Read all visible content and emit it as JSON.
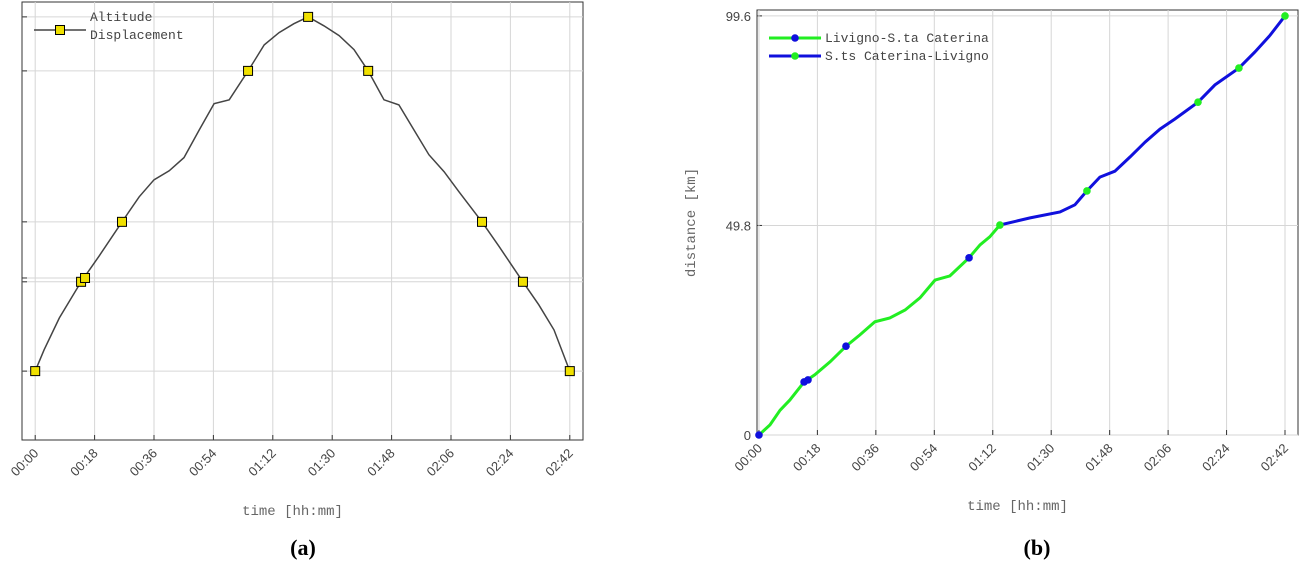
{
  "chart_data": [
    {
      "type": "line",
      "caption": "(a)",
      "x_label": "time [hh:mm]",
      "grid": true,
      "legend": "upper left",
      "xlim": [
        -4,
        166
      ],
      "ylim": [
        0,
        103
      ],
      "xticks": [
        {
          "value": 0,
          "label": "00:00"
        },
        {
          "value": 18,
          "label": "00:18"
        },
        {
          "value": 36,
          "label": "00:36"
        },
        {
          "value": 54,
          "label": "00:54"
        },
        {
          "value": 72,
          "label": "01:12"
        },
        {
          "value": 90,
          "label": "01:30"
        },
        {
          "value": 108,
          "label": "01:48"
        },
        {
          "value": 126,
          "label": "02:06"
        },
        {
          "value": 144,
          "label": "02:24"
        },
        {
          "value": 162,
          "label": "02:42"
        }
      ],
      "yticks": [
        16.2,
        37.2,
        38.1,
        51.3,
        86.8,
        99.5
      ],
      "series": [
        {
          "name": "Altitude Displacement",
          "color": "#444444",
          "marker_color": "#f0e000",
          "marker": "square",
          "x": [
            0,
            2.7,
            7.3,
            13.9,
            19.4,
            26.3,
            31.5,
            36.0,
            40.6,
            45.1,
            49.7,
            54.2,
            58.8,
            64.5,
            69.4,
            73.9,
            78.4,
            82.7,
            87.5,
            92.1,
            96.6,
            100.9,
            105.7,
            110.2,
            114.8,
            119.3,
            123.9,
            128.4,
            135.4,
            140.5,
            147.8,
            152.6,
            157.2,
            162
          ],
          "values": [
            16.2,
            21.2,
            28.7,
            37.2,
            43.3,
            51.3,
            57.2,
            61.2,
            63.3,
            66.4,
            72.9,
            79.1,
            80.0,
            86.8,
            92.9,
            95.8,
            97.9,
            99.5,
            97.4,
            95.1,
            91.8,
            86.8,
            80.0,
            78.8,
            72.9,
            67.1,
            63.1,
            58.4,
            51.3,
            45.6,
            37.2,
            31.8,
            25.9,
            16.2
          ],
          "marker_x": [
            0,
            13.9,
            15.1,
            26.3,
            64.5,
            82.7,
            100.9,
            135.4,
            147.8,
            162
          ],
          "marker_values": [
            16.2,
            37.2,
            38.1,
            51.3,
            86.8,
            99.5,
            86.8,
            51.3,
            37.2,
            16.2
          ]
        }
      ]
    },
    {
      "type": "line",
      "caption": "(b)",
      "x_label": "time [hh:mm]",
      "y_label": "distance [km]",
      "grid": true,
      "legend": "upper left",
      "xlim": [
        -0.6,
        166
      ],
      "ylim": [
        0,
        101
      ],
      "xticks": [
        {
          "value": 0,
          "label": "00:00"
        },
        {
          "value": 18,
          "label": "00:18"
        },
        {
          "value": 36,
          "label": "00:36"
        },
        {
          "value": 54,
          "label": "00:54"
        },
        {
          "value": 72,
          "label": "01:12"
        },
        {
          "value": 90,
          "label": "01:30"
        },
        {
          "value": 108,
          "label": "01:48"
        },
        {
          "value": 126,
          "label": "02:06"
        },
        {
          "value": 144,
          "label": "02:24"
        },
        {
          "value": 162,
          "label": "02:42"
        }
      ],
      "yticks": [
        0,
        49.8,
        99.6
      ],
      "series": [
        {
          "name": "Livigno-S.ta Caterina",
          "color": "#22ee22",
          "marker_color": "#1010dd",
          "marker": "circle",
          "x": [
            0,
            3.4,
            6.5,
            9.5,
            13.9,
            17.2,
            21.9,
            26.8,
            31.1,
            35.7,
            40.3,
            45.0,
            49.6,
            54.2,
            58.8,
            64.7,
            68.1,
            71.1,
            74.2
          ],
          "values": [
            0,
            2.4,
            5.9,
            8.3,
            12.6,
            14.3,
            17.4,
            21.1,
            23.8,
            26.9,
            27.8,
            29.7,
            32.6,
            36.8,
            37.8,
            42.1,
            45.2,
            47.1,
            49.9
          ],
          "marker_x": [
            0,
            13.9,
            15.1,
            26.8,
            64.7
          ],
          "marker_values": [
            0,
            12.6,
            13.1,
            21.1,
            42.1
          ]
        },
        {
          "name": "S.ts Caterina-Livigno",
          "color": "#1010dd",
          "marker_color": "#22ee22",
          "marker": "circle",
          "x": [
            74.2,
            83.5,
            92.7,
            97.3,
            101.0,
            105.0,
            109.6,
            114.3,
            118.9,
            123.5,
            128.1,
            135.2,
            140.4,
            147.8,
            152.7,
            157.4,
            162.0
          ],
          "values": [
            49.9,
            51.6,
            53.0,
            54.7,
            58.0,
            61.3,
            62.7,
            66.1,
            69.6,
            72.7,
            75.1,
            79.1,
            83.2,
            87.2,
            91.0,
            95.0,
            99.6
          ],
          "marker_x": [
            74.2,
            101.0,
            135.2,
            147.8,
            162.0
          ],
          "marker_values": [
            49.9,
            58.0,
            79.1,
            87.2,
            99.6
          ]
        }
      ]
    }
  ]
}
